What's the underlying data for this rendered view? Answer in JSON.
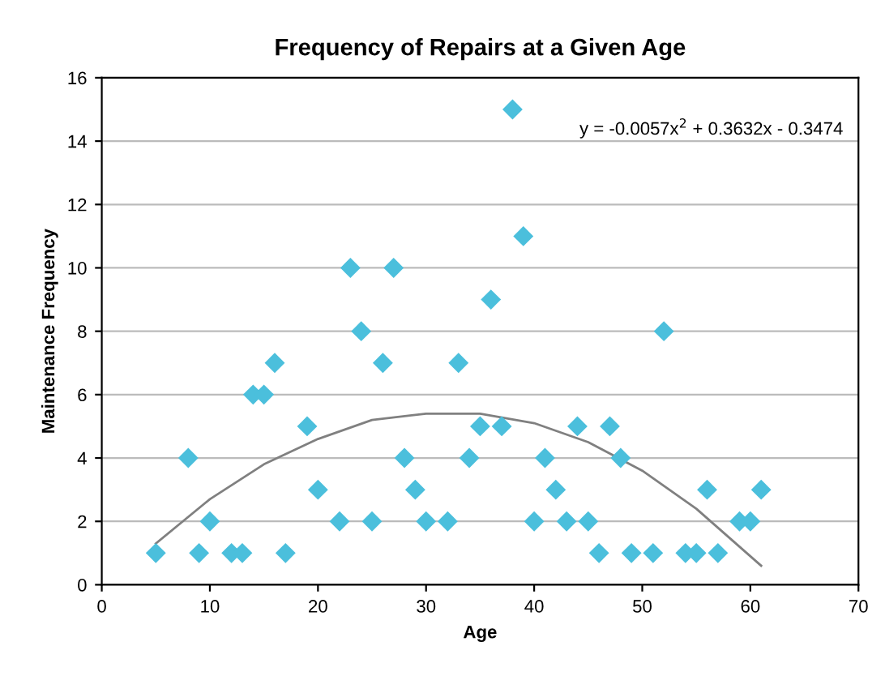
{
  "chart_data": {
    "type": "scatter",
    "title": "Frequency of Repairs at a Given Age",
    "xlabel": "Age",
    "ylabel": "Maintenance Frequency",
    "xlim": [
      0,
      70
    ],
    "xticks": [
      0,
      10,
      20,
      30,
      40,
      50,
      60,
      70
    ],
    "ylim": [
      0,
      16
    ],
    "yticks": [
      0,
      2,
      4,
      6,
      8,
      10,
      12,
      14,
      16
    ],
    "grid": "y",
    "marker": "diamond",
    "series": [
      {
        "color": "#4bbfdc",
        "x": [
          5,
          8,
          9,
          10,
          12,
          13,
          14,
          15,
          16,
          17,
          19,
          20,
          22,
          23,
          24,
          25,
          26,
          27,
          28,
          29,
          30,
          32,
          33,
          34,
          35,
          36,
          37,
          38,
          39,
          40,
          41,
          42,
          43,
          44,
          45,
          46,
          47,
          48,
          49,
          51,
          52,
          54,
          55,
          56,
          57,
          59,
          60,
          61
        ],
        "values": [
          1,
          4,
          1,
          2,
          1,
          1,
          6,
          6,
          7,
          1,
          5,
          3,
          2,
          10,
          8,
          2,
          7,
          10,
          4,
          3,
          2,
          2,
          7,
          4,
          5,
          9,
          5,
          15,
          11,
          2,
          4,
          3,
          2,
          5,
          2,
          1,
          5,
          4,
          1,
          1,
          8,
          1,
          1,
          3,
          1,
          2,
          2,
          3
        ]
      },
      {
        "type": "line",
        "color": "#808080",
        "marker": "none",
        "x": [
          5,
          10,
          15,
          20,
          25,
          30,
          35,
          40,
          45,
          50,
          55,
          61
        ],
        "values": [
          1.3,
          2.7,
          3.8,
          4.6,
          5.2,
          5.4,
          5.4,
          5.1,
          4.5,
          3.6,
          2.4,
          0.6
        ]
      }
    ],
    "annotations": [
      "y = -0.0057x$^{2}$ + 0.3632x - 0.3474"
    ]
  }
}
